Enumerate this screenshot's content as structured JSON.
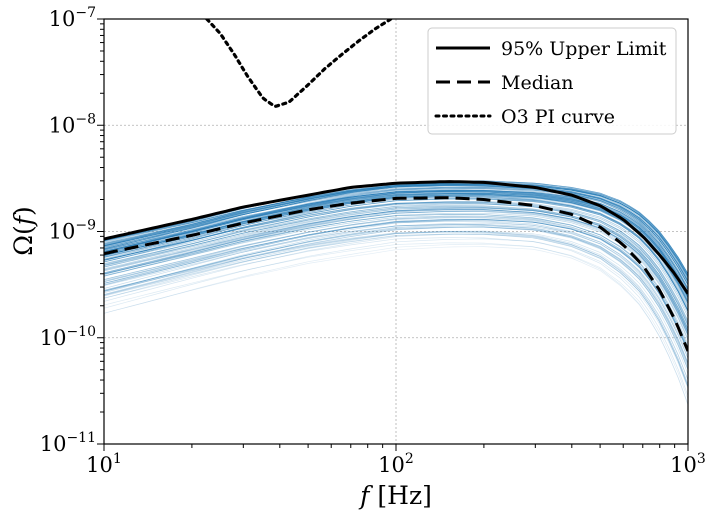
{
  "chart_data": {
    "type": "line",
    "title": "",
    "xlabel": {
      "var": "f",
      "unit": "[Hz]"
    },
    "ylabel": {
      "sym": "Ω(",
      "var": "f",
      "close": ")"
    },
    "xscale": "log",
    "yscale": "log",
    "xlim": [
      10,
      1000
    ],
    "ylim": [
      1e-11,
      1e-07
    ],
    "grid": true,
    "legend_position": "top-right",
    "x_ticks": [
      {
        "value": 10,
        "base": "10",
        "exp": "1"
      },
      {
        "value": 100,
        "base": "10",
        "exp": "2"
      },
      {
        "value": 1000,
        "base": "10",
        "exp": "3"
      }
    ],
    "y_ticks": [
      {
        "value": 1e-11,
        "base": "10",
        "exp": "−11"
      },
      {
        "value": 1e-10,
        "base": "10",
        "exp": "−10"
      },
      {
        "value": 1e-09,
        "base": "10",
        "exp": "−9"
      },
      {
        "value": 1e-08,
        "base": "10",
        "exp": "−8"
      },
      {
        "value": 1e-07,
        "base": "10",
        "exp": "−7"
      }
    ],
    "series": [
      {
        "name": "95% Upper Limit",
        "style": "solid",
        "color": "#000000",
        "x": [
          10,
          20,
          30,
          50,
          70,
          100,
          150,
          200,
          300,
          400,
          500,
          600,
          700,
          800,
          900,
          1000
        ],
        "y": [
          8.5e-10,
          1.3e-09,
          1.7e-09,
          2.2e-09,
          2.6e-09,
          2.85e-09,
          2.95e-09,
          2.9e-09,
          2.6e-09,
          2.2e-09,
          1.75e-09,
          1.3e-09,
          9e-10,
          6e-10,
          4e-10,
          2.6e-10
        ]
      },
      {
        "name": "Median",
        "style": "dashed",
        "color": "#000000",
        "x": [
          10,
          20,
          30,
          50,
          70,
          100,
          150,
          200,
          300,
          400,
          500,
          600,
          700,
          800,
          900,
          1000
        ],
        "y": [
          6.2e-10,
          9.2e-10,
          1.2e-09,
          1.6e-09,
          1.85e-09,
          2.05e-09,
          2.08e-09,
          2e-09,
          1.75e-09,
          1.45e-09,
          1.1e-09,
          7.5e-10,
          4.8e-10,
          2.8e-10,
          1.5e-10,
          7.5e-11
        ]
      },
      {
        "name": "O3 PI curve",
        "style": "dotted",
        "color": "#000000",
        "x": [
          22.5,
          25,
          28,
          31,
          35,
          38.5,
          43,
          50,
          57,
          65,
          75,
          85,
          96
        ],
        "y": [
          1e-07,
          7.3e-08,
          4.6e-08,
          2.9e-08,
          1.8e-08,
          1.5e-08,
          1.65e-08,
          2.4e-08,
          3.4e-08,
          4.6e-08,
          6.3e-08,
          8.1e-08,
          1e-07
        ]
      }
    ],
    "sample_band": {
      "color": "#1f77b4",
      "curves": 120,
      "x": [
        10,
        20,
        30,
        50,
        70,
        100,
        150,
        200,
        300,
        400,
        500,
        600,
        700,
        800,
        900,
        1000
      ],
      "upper": [
        8.2e-10,
        1.25e-09,
        1.65e-09,
        2.2e-09,
        2.6e-09,
        2.9e-09,
        3e-09,
        3e-09,
        2.85e-09,
        2.6e-09,
        2.3e-09,
        1.9e-09,
        1.45e-09,
        1e-09,
        6.5e-10,
        4e-10
      ],
      "lower": [
        1.7e-10,
        2.8e-10,
        3.7e-10,
        5e-10,
        5.8e-10,
        6.7e-10,
        7e-10,
        7e-10,
        6.5e-10,
        5.3e-10,
        4e-10,
        2.7e-10,
        1.7e-10,
        9e-11,
        4.5e-11,
        2e-11
      ]
    }
  }
}
